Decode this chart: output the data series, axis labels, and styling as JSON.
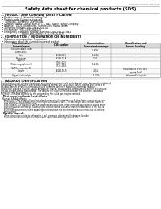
{
  "header_left": "Product name: Lithium Ion Battery Cell",
  "header_right_line1": "SDS Control Number: SDS-LEI-000-010",
  "header_right_line2": "Established / Revision: Dec.1.2019",
  "title": "Safety data sheet for chemical products (SDS)",
  "section1_title": "1. PRODUCT AND COMPANY IDENTIFICATION",
  "section1_lines": [
    "  • Product name: Lithium Ion Battery Cell",
    "  • Product code: Cylindrical-type cell",
    "      (18650BU, 26V18650, 26V18650A)",
    "  • Company name:   Sanyo Electric Co., Ltd., Mobile Energy Company",
    "  • Address:   20-21, Kamikaizen, Sumoto-City, Hyogo, Japan",
    "  • Telephone number:  +81-(799)-20-4111",
    "  • Fax number:  +81-(799)-26-4129",
    "  • Emergency telephone number (daytime): +81-799-20-3842",
    "                              (Night and holiday): +81-799-26-4129"
  ],
  "section2_title": "2. COMPOSITION / INFORMATION ON INGREDIENTS",
  "section2_lines": [
    "  • Substance or preparation: Preparation",
    "  • Information about the chemical nature of product:"
  ],
  "col_labels": [
    "Common name /\nGeneral name",
    "CAS number",
    "Concentration /\nConcentration range",
    "Classification and\nhazard labeling"
  ],
  "table_rows": [
    [
      "Lithium cobalt oxide\n(LiMnCo)(x)",
      "-",
      "30-60%",
      "-"
    ],
    [
      "Iron",
      "26390-06-5",
      "15-25%",
      "-"
    ],
    [
      "Aluminum",
      "74293-00-8",
      "2-5%",
      "-"
    ],
    [
      "Graphite\n(Flake or graphite=1)\n(Al/Mo graphite=1)",
      "7782-42-5\n7732-45-0",
      "10-25%",
      "-"
    ],
    [
      "Copper",
      "74440-50-9",
      "5-15%",
      "Sensitization of the skin\ngroup No.2"
    ],
    [
      "Organic electrolyte",
      "-",
      "10-20%",
      "Inflammable liquids"
    ]
  ],
  "section3_title": "3. HAZARDS IDENTIFICATION",
  "section3_para": [
    "For the battery cell, chemical materials are stored in a hermetically sealed metal case, designed to withstand",
    "temperatures and pressure-concentration during normal use. As a result, during normal use, there is no",
    "physical danger of ignition or explosion and therefore danger of hazardous materials leakage.",
    "However, if exposed to a fire, added mechanical shocks, decomposed, armed electro without any misuse,",
    "the gas release cannot be operated. The battery cell case will be breached at fire patterns, hazardous",
    "materials may be released.",
    "Moreover, if heated strongly by the surrounding fire, solid gas may be emitted."
  ],
  "section3_important": "• Most important hazard and effects:",
  "section3_human": "Human health effects:",
  "section3_human_lines": [
    "Inhalation: The release of the electrolyte has an anesthesia action and stimulates in respiratory tract.",
    "Skin contact: The release of the electrolyte stimulates a skin. The electrolyte skin contact causes a",
    "sore and stimulation on the skin.",
    "Eye contact: The release of the electrolyte stimulates eyes. The electrolyte eye contact causes a sore",
    "and stimulation on the eye. Especially, a substance that causes a strong inflammation of the eye is",
    "contained.",
    "Environmental effects: Since a battery cell remains in the environment, do not throw out it into the",
    "environment."
  ],
  "section3_specific": "• Specific hazards:",
  "section3_specific_lines": [
    "If the electrolyte contacts with water, it will generate detrimental hydrogen fluoride.",
    "Since the used electrolyte is inflammable liquid, do not bring close to fire."
  ],
  "bg_color": "#ffffff",
  "text_color": "#000000",
  "gray": "#666666",
  "line_color": "#aaaaaa",
  "table_border": "#888888",
  "header_bg": "#d8d8d8"
}
